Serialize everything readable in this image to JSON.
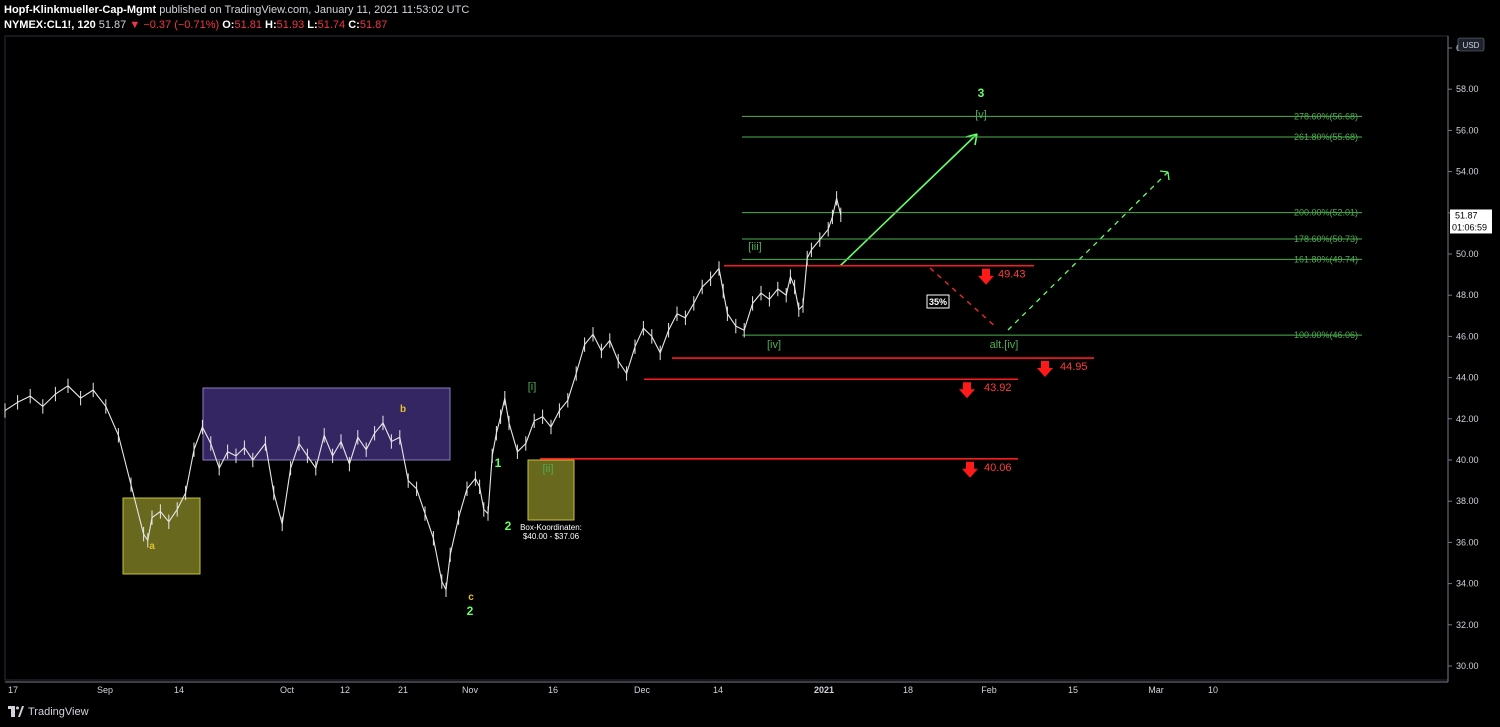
{
  "header": {
    "publisher": "Hopf-Klinkmueller-Cap-Mgmt",
    "published_text": "published on TradingView.com, January 11, 2021 11:53:02 UTC",
    "symbol": "NYMEX:CL1!, 120",
    "last": "51.87",
    "change": "−0.37 (−0.71%)",
    "o_label": "O:",
    "o_value": "51.81",
    "h_label": "H:",
    "h_value": "51.93",
    "l_label": "L:",
    "l_value": "51.74",
    "c_label": "C:",
    "c_value": "51.87"
  },
  "footer": {
    "brand": "TradingView"
  },
  "colors": {
    "background": "#000000",
    "green": "#4caf50",
    "bright_green": "#66ff66",
    "red": "#ff1a1a",
    "purple": "#3a2a6e",
    "olive": "#7a7a24",
    "yellow": "#e6c229",
    "price_line": "#ffffff"
  },
  "chart_data": {
    "type": "line",
    "y_axis": {
      "unit": "USD",
      "ylim": [
        29,
        61
      ],
      "ticks": [
        "60.00",
        "58.00",
        "56.00",
        "54.00",
        "52.00",
        "50.00",
        "48.00",
        "46.00",
        "44.00",
        "42.00",
        "40.00",
        "38.00",
        "36.00",
        "34.00",
        "32.00",
        "30.00"
      ]
    },
    "x_ticks": [
      "17",
      "Sep",
      "14",
      "Oct",
      "12",
      "21",
      "Nov",
      "16",
      "Dec",
      "14",
      "2021",
      "18",
      "Feb",
      "15",
      "Mar",
      "10"
    ],
    "price_labels": {
      "last": "51.87",
      "countdown": "01:06:59"
    },
    "series": [
      {
        "values": [
          {
            "t": 0,
            "v": 42.4
          },
          {
            "t": 3,
            "v": 42.8
          },
          {
            "t": 6,
            "v": 43.1
          },
          {
            "t": 9,
            "v": 42.6
          },
          {
            "t": 12,
            "v": 43.2
          },
          {
            "t": 15,
            "v": 43.6
          },
          {
            "t": 18,
            "v": 43.0
          },
          {
            "t": 21,
            "v": 43.4
          },
          {
            "t": 24,
            "v": 42.6
          },
          {
            "t": 27,
            "v": 41.2
          },
          {
            "t": 30,
            "v": 38.8
          },
          {
            "t": 33,
            "v": 36.4
          },
          {
            "t": 34,
            "v": 36.1
          },
          {
            "t": 35,
            "v": 37.2
          },
          {
            "t": 37,
            "v": 37.5
          },
          {
            "t": 39,
            "v": 37.0
          },
          {
            "t": 41,
            "v": 37.6
          },
          {
            "t": 43,
            "v": 38.4
          },
          {
            "t": 45,
            "v": 40.5
          },
          {
            "t": 47,
            "v": 41.6
          },
          {
            "t": 49,
            "v": 40.8
          },
          {
            "t": 51,
            "v": 39.6
          },
          {
            "t": 53,
            "v": 40.4
          },
          {
            "t": 55,
            "v": 40.2
          },
          {
            "t": 57,
            "v": 40.6
          },
          {
            "t": 59,
            "v": 40.0
          },
          {
            "t": 62,
            "v": 40.8
          },
          {
            "t": 64,
            "v": 38.4
          },
          {
            "t": 66,
            "v": 36.9
          },
          {
            "t": 68,
            "v": 39.6
          },
          {
            "t": 70,
            "v": 40.8
          },
          {
            "t": 72,
            "v": 40.2
          },
          {
            "t": 74,
            "v": 39.6
          },
          {
            "t": 76,
            "v": 41.2
          },
          {
            "t": 78,
            "v": 40.2
          },
          {
            "t": 80,
            "v": 40.9
          },
          {
            "t": 82,
            "v": 39.8
          },
          {
            "t": 84,
            "v": 41.1
          },
          {
            "t": 86,
            "v": 40.5
          },
          {
            "t": 88,
            "v": 41.3
          },
          {
            "t": 90,
            "v": 41.8
          },
          {
            "t": 92,
            "v": 40.9
          },
          {
            "t": 94,
            "v": 41.1
          },
          {
            "t": 96,
            "v": 39.0
          },
          {
            "t": 98,
            "v": 38.6
          },
          {
            "t": 100,
            "v": 37.4
          },
          {
            "t": 102,
            "v": 36.2
          },
          {
            "t": 104,
            "v": 34.1
          },
          {
            "t": 105,
            "v": 33.7
          },
          {
            "t": 106,
            "v": 35.4
          },
          {
            "t": 108,
            "v": 37.2
          },
          {
            "t": 110,
            "v": 38.6
          },
          {
            "t": 112,
            "v": 39.1
          },
          {
            "t": 113,
            "v": 38.7
          },
          {
            "t": 114,
            "v": 37.6
          },
          {
            "t": 115,
            "v": 37.4
          },
          {
            "t": 116,
            "v": 40.2
          },
          {
            "t": 117,
            "v": 41.3
          },
          {
            "t": 118,
            "v": 42.1
          },
          {
            "t": 119,
            "v": 43.0
          },
          {
            "t": 120,
            "v": 41.8
          },
          {
            "t": 122,
            "v": 40.4
          },
          {
            "t": 124,
            "v": 40.8
          },
          {
            "t": 126,
            "v": 41.9
          },
          {
            "t": 128,
            "v": 42.1
          },
          {
            "t": 130,
            "v": 41.6
          },
          {
            "t": 132,
            "v": 42.4
          },
          {
            "t": 134,
            "v": 42.9
          },
          {
            "t": 136,
            "v": 44.2
          },
          {
            "t": 138,
            "v": 45.6
          },
          {
            "t": 140,
            "v": 46.1
          },
          {
            "t": 142,
            "v": 45.3
          },
          {
            "t": 144,
            "v": 45.8
          },
          {
            "t": 146,
            "v": 44.8
          },
          {
            "t": 148,
            "v": 44.2
          },
          {
            "t": 150,
            "v": 45.5
          },
          {
            "t": 152,
            "v": 46.4
          },
          {
            "t": 154,
            "v": 46.0
          },
          {
            "t": 156,
            "v": 45.2
          },
          {
            "t": 158,
            "v": 46.3
          },
          {
            "t": 160,
            "v": 47.1
          },
          {
            "t": 162,
            "v": 46.9
          },
          {
            "t": 164,
            "v": 47.6
          },
          {
            "t": 166,
            "v": 48.4
          },
          {
            "t": 168,
            "v": 48.8
          },
          {
            "t": 170,
            "v": 49.3
          },
          {
            "t": 171,
            "v": 48.2
          },
          {
            "t": 172,
            "v": 47.1
          },
          {
            "t": 174,
            "v": 46.5
          },
          {
            "t": 176,
            "v": 46.3
          },
          {
            "t": 178,
            "v": 47.6
          },
          {
            "t": 180,
            "v": 48.1
          },
          {
            "t": 182,
            "v": 47.8
          },
          {
            "t": 184,
            "v": 48.3
          },
          {
            "t": 186,
            "v": 48.0
          },
          {
            "t": 187,
            "v": 48.9
          },
          {
            "t": 188,
            "v": 48.4
          },
          {
            "t": 189,
            "v": 47.3
          },
          {
            "t": 190,
            "v": 47.5
          },
          {
            "t": 191,
            "v": 49.8
          },
          {
            "t": 192,
            "v": 50.2
          },
          {
            "t": 194,
            "v": 50.7
          },
          {
            "t": 196,
            "v": 51.2
          },
          {
            "t": 197,
            "v": 51.8
          },
          {
            "t": 198,
            "v": 52.7
          },
          {
            "t": 199,
            "v": 51.9
          }
        ]
      }
    ],
    "levels": [
      {
        "label": "278.60%(56.68)",
        "value": 56.68
      },
      {
        "label": "261.80%(55.68)",
        "value": 55.68
      },
      {
        "label": "200.00%(52.01)",
        "value": 52.01
      },
      {
        "label": "178.60%(50.73)",
        "value": 50.73
      },
      {
        "label": "161.80%(49.74)",
        "value": 49.74
      },
      {
        "label": "100.00%(46.06)",
        "value": 46.06
      }
    ],
    "stops": [
      {
        "label": "49.43",
        "value": 49.43
      },
      {
        "label": "44.95",
        "value": 44.95
      },
      {
        "label": "43.92",
        "value": 43.92
      },
      {
        "label": "40.06",
        "value": 40.06
      }
    ],
    "wave_labels": [
      "3",
      "[v]",
      "[iii]",
      "[iv]",
      "alt.[iv]",
      "[i]",
      "[ii]",
      "1",
      "2",
      "a",
      "b",
      "c",
      "2"
    ],
    "box_note": [
      "Box-Koordinaten:",
      "$40.00 - $37.06"
    ],
    "percent_badge": "35%"
  }
}
